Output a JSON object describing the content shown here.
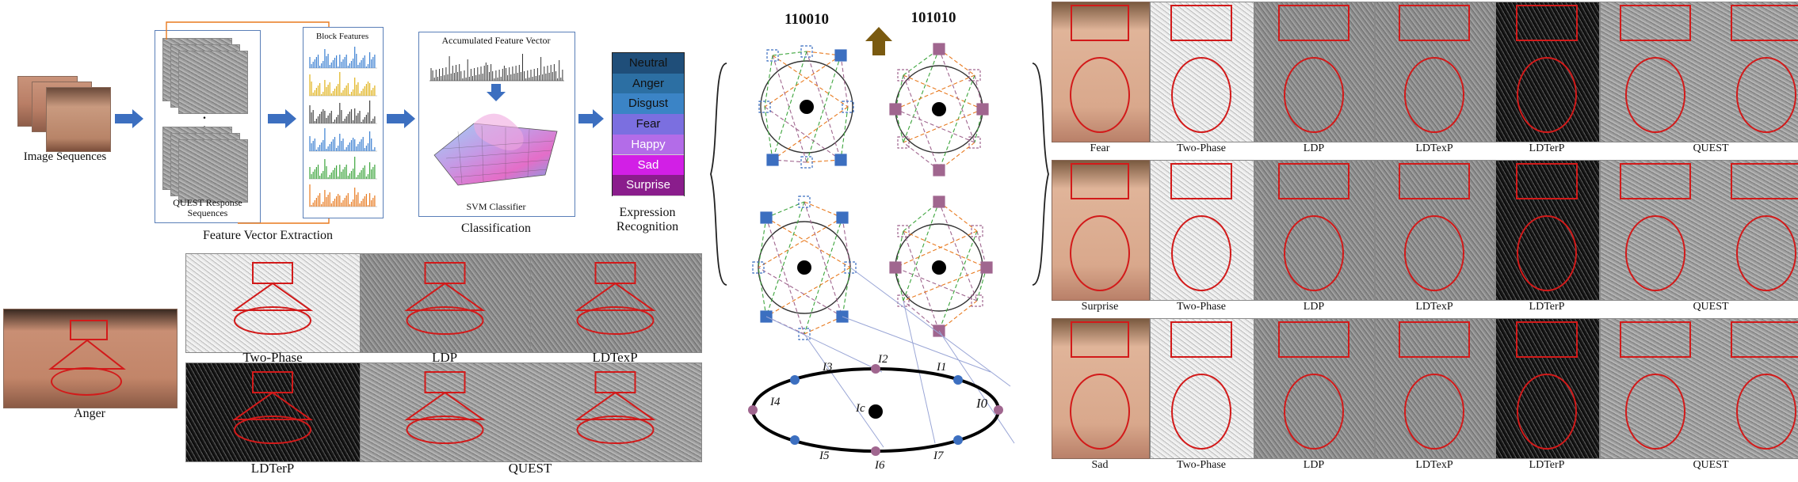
{
  "pipeline": {
    "image_sequences_label": "Image Sequences",
    "quest_response_label": "QUEST Response Sequences",
    "block_features_label": "Block Features",
    "feature_vector_extraction_label": "Feature Vector Extraction",
    "accumulated_feature_vector_label": "Accumulated Feature Vector",
    "svm_classifier_label": "SVM Classifier",
    "classification_label": "Classification",
    "expression_recognition_label": "Expression Recognition",
    "dots": ".",
    "expressions": [
      {
        "label": "Neutral",
        "color": "#1f4e79"
      },
      {
        "label": "Anger",
        "color": "#2c6fa3"
      },
      {
        "label": "Disgust",
        "color": "#3b84c6"
      },
      {
        "label": "Fear",
        "color": "#7b6fe0"
      },
      {
        "label": "Happy",
        "color": "#b36ce8"
      },
      {
        "label": "Sad",
        "color": "#d21fe6"
      },
      {
        "label": "Surprise",
        "color": "#8a1d8c"
      }
    ],
    "series_colors": [
      "#3a7fd1",
      "#e0b21a",
      "#444444",
      "#3a7fd1",
      "#3da53d",
      "#e87a1f"
    ]
  },
  "anger_comparison": {
    "face_label": "Anger",
    "panels": [
      "Two-Phase",
      "LDP",
      "LDTexP",
      "LDTerP",
      "QUEST"
    ]
  },
  "encoding": {
    "code_left": "110010",
    "code_right": "101010",
    "ring_labels": [
      "I0",
      "I1",
      "I2",
      "I3",
      "I4",
      "I5",
      "I6",
      "I7",
      "Ic"
    ],
    "colors": {
      "blue": "#3c6fc0",
      "mauve": "#a0668f",
      "arrow": "#7a5a10"
    }
  },
  "expression_grid": {
    "rows": [
      {
        "labels": [
          "Fear",
          "Two-Phase",
          "LDP",
          "LDTexP",
          "LDTerP",
          "QUEST"
        ]
      },
      {
        "labels": [
          "Surprise",
          "Two-Phase",
          "LDP",
          "LDTexP",
          "LDTerP",
          "QUEST"
        ]
      },
      {
        "labels": [
          "Sad",
          "Two-Phase",
          "LDP",
          "LDTexP",
          "LDTerP",
          "QUEST"
        ]
      }
    ]
  }
}
